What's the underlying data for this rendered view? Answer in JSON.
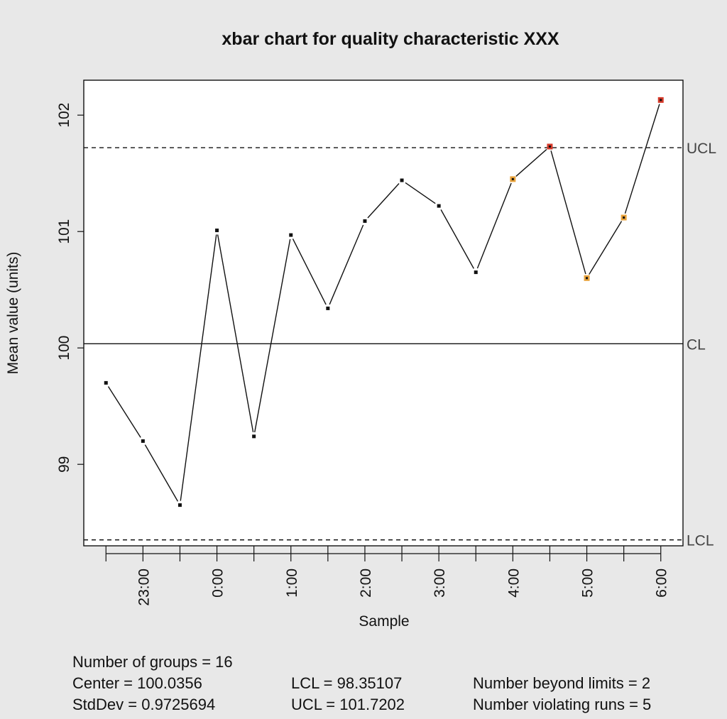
{
  "chart_data": {
    "type": "line",
    "title": "xbar chart for quality characteristic XXX",
    "xlabel": "Sample",
    "ylabel": "Mean value (units)",
    "ylim": [
      98.3,
      102.3
    ],
    "xlim": [
      0.4,
      16.6
    ],
    "yticks": [
      "99",
      "100",
      "101",
      "102"
    ],
    "xtick_labels": [
      {
        "x": 2,
        "label": "23:00"
      },
      {
        "x": 4,
        "label": "0:00"
      },
      {
        "x": 6,
        "label": "1:00"
      },
      {
        "x": 8,
        "label": "2:00"
      },
      {
        "x": 10,
        "label": "3:00"
      },
      {
        "x": 12,
        "label": "4:00"
      },
      {
        "x": 14,
        "label": "5:00"
      },
      {
        "x": 16,
        "label": "6:00"
      }
    ],
    "x": [
      1,
      2,
      3,
      4,
      5,
      6,
      7,
      8,
      9,
      10,
      11,
      12,
      13,
      14,
      15,
      16
    ],
    "values": [
      99.7,
      99.2,
      98.65,
      101.01,
      99.24,
      100.97,
      100.34,
      101.09,
      101.44,
      101.22,
      100.65,
      101.45,
      101.73,
      100.6,
      101.12,
      102.13
    ],
    "point_status": [
      "ok",
      "ok",
      "ok",
      "ok",
      "ok",
      "ok",
      "ok",
      "ok",
      "ok",
      "ok",
      "ok",
      "run",
      "beyond",
      "run",
      "run",
      "beyond"
    ],
    "control_limits": [
      {
        "label": "UCL",
        "value": 101.7202,
        "style": "dashed"
      },
      {
        "label": "CL",
        "value": 100.0356,
        "style": "solid"
      },
      {
        "label": "LCL",
        "value": 98.35107,
        "style": "dashed"
      }
    ],
    "grid": false,
    "colors": {
      "ok": "#111111",
      "run": "#e8a23a",
      "beyond": "#d63a2a",
      "line": "#111111",
      "background": "#e8e8e8",
      "plot_bg": "#ffffff"
    }
  },
  "summary": {
    "groups": "Number of groups = 16",
    "center": "Center = 100.0356",
    "stddev": "StdDev = 0.9725694",
    "lcl": "LCL = 98.35107",
    "ucl": "UCL = 101.7202",
    "beyond": "Number beyond limits = 2",
    "violating": "Number violating runs = 5"
  }
}
